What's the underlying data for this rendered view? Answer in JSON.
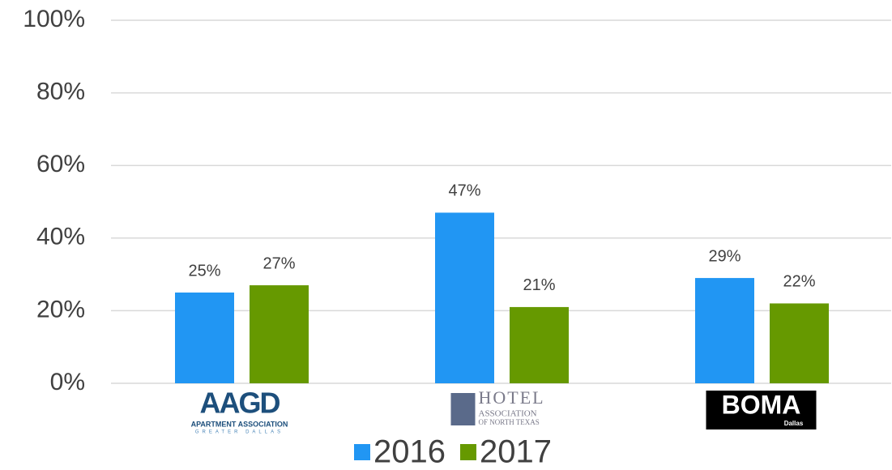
{
  "chart_data": {
    "type": "bar",
    "categories": [
      "AAGD",
      "HOTEL",
      "BOMA"
    ],
    "category_sublabels": [
      [
        "APARTMENT ASSOCIATION",
        "GREATER DALLAS"
      ],
      [
        "ASSOCIATION",
        "OF NORTH TEXAS"
      ],
      [
        "Dallas"
      ]
    ],
    "series": [
      {
        "name": "2016",
        "color": "#2196f3",
        "values": [
          25,
          47,
          29
        ],
        "value_labels": [
          "25%",
          "47%",
          "29%"
        ]
      },
      {
        "name": "2017",
        "color": "#669900",
        "values": [
          27,
          21,
          22
        ],
        "value_labels": [
          "27%",
          "21%",
          "22%"
        ]
      }
    ],
    "ylim": [
      0,
      100
    ],
    "yticks": [
      {
        "value": 0,
        "label": "0%"
      },
      {
        "value": 20,
        "label": "20%"
      },
      {
        "value": 40,
        "label": "40%"
      },
      {
        "value": 60,
        "label": "60%"
      },
      {
        "value": 80,
        "label": "80%"
      },
      {
        "value": 100,
        "label": "100%"
      }
    ],
    "grid": true,
    "legend": "bottom"
  }
}
